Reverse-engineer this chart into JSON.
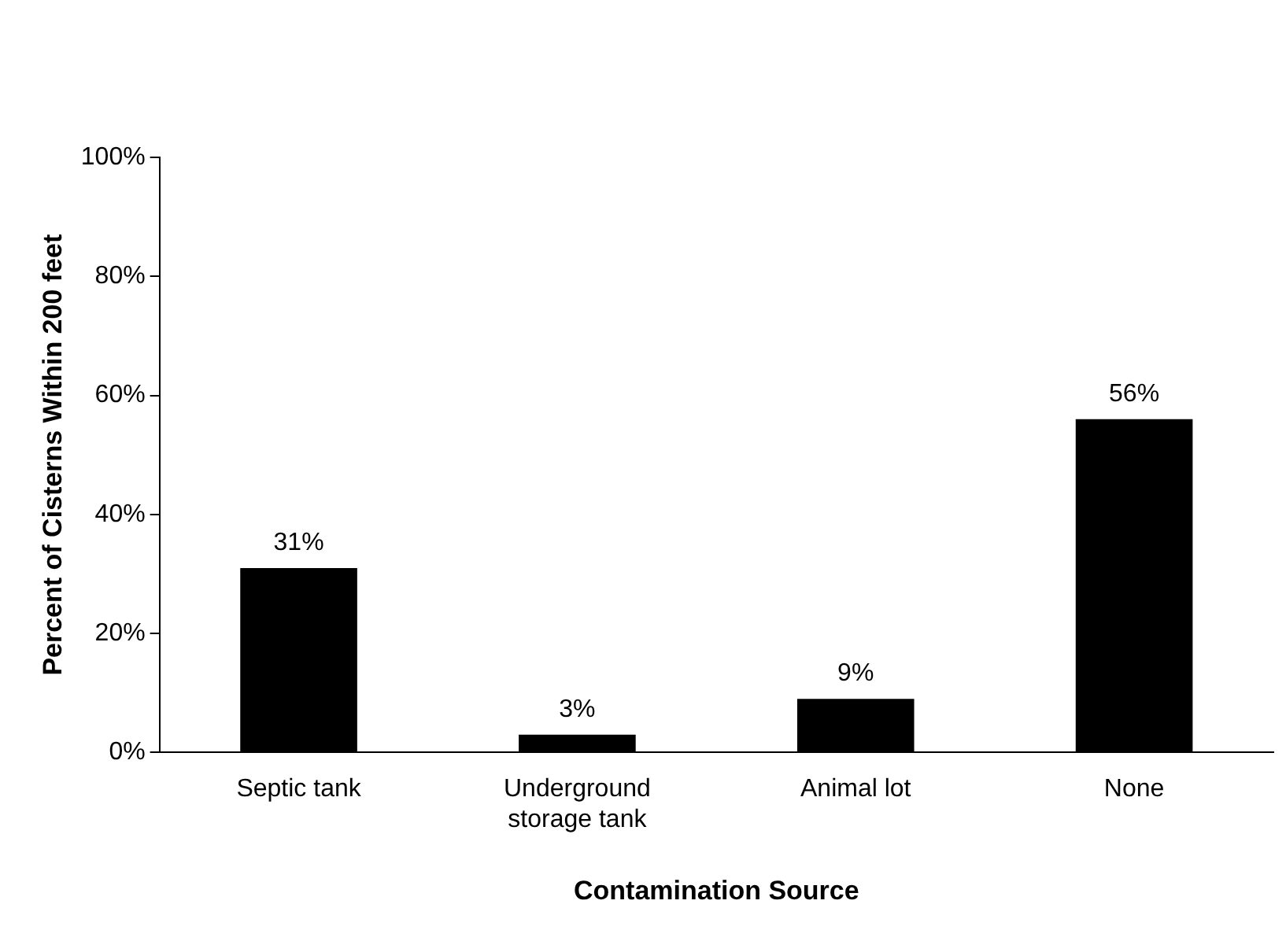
{
  "chart_data": {
    "type": "bar",
    "xlabel": "Contamination Source",
    "ylabel": "Percent of Cisterns Within 200 feet",
    "categories": [
      "Septic tank",
      "Underground storage tank",
      "Animal lot",
      "None"
    ],
    "values": [
      31,
      3,
      9,
      56
    ],
    "value_labels": [
      "31%",
      "3%",
      "9%",
      "56%"
    ],
    "color": "#000000",
    "ylim": [
      0,
      100
    ],
    "yticks": [
      {
        "value": 0,
        "label": "0%"
      },
      {
        "value": 20,
        "label": "20%"
      },
      {
        "value": 40,
        "label": "40%"
      },
      {
        "value": 60,
        "label": "60%"
      },
      {
        "value": 80,
        "label": "80%"
      },
      {
        "value": 100,
        "label": "100%"
      }
    ],
    "grid": false,
    "legend": false
  }
}
